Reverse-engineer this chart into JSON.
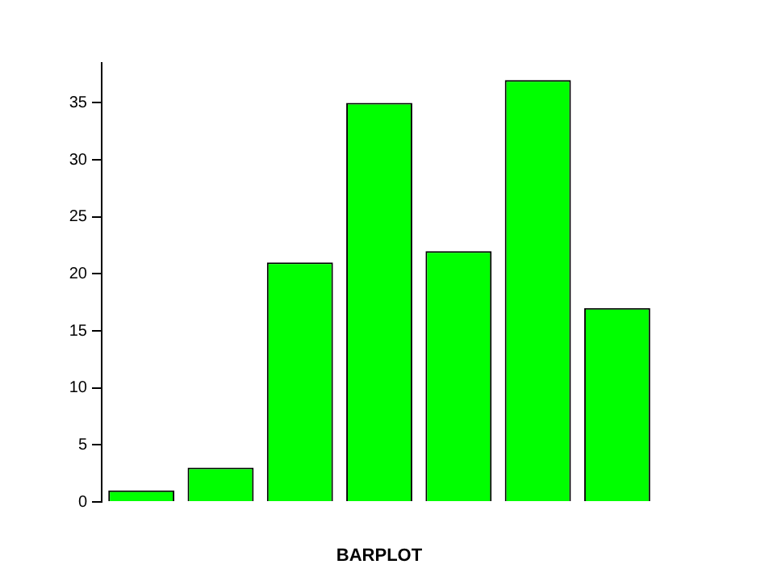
{
  "chart_data": {
    "type": "bar",
    "xlabel": "BARPLOT",
    "categories": [
      null,
      null,
      null,
      null,
      null,
      null,
      null
    ],
    "values": [
      1,
      3,
      21,
      35,
      22,
      37,
      17
    ],
    "color": "#00ff00",
    "ylim": [
      0,
      38.5
    ],
    "yticks": [
      0,
      5,
      10,
      15,
      20,
      25,
      30,
      35
    ],
    "grid": false,
    "legend": false
  }
}
